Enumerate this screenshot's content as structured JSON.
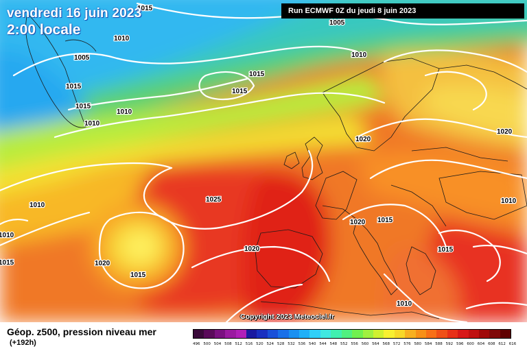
{
  "title": {
    "date": "vendredi 16 juin 2023",
    "time": "2:00 locale"
  },
  "run": "Run ECMWF 0Z du jeudi 8 juin 2023",
  "copyright": "Copyright 2023 Meteociel.fr",
  "product": {
    "name": "Géop. z500, pression niveau mer",
    "lead": "(+192h)"
  },
  "isobar_labels": [
    "1015",
    "1005",
    "1010",
    "1005",
    "1015",
    "1015",
    "1010",
    "1010",
    "1015",
    "1015",
    "1010",
    "1020",
    "1010",
    "1025",
    "1020",
    "1010",
    "1015",
    "1020",
    "1015",
    "1020",
    "1015",
    "1015",
    "1010",
    "1020",
    "1010"
  ],
  "scale": {
    "values": [
      "496",
      "500",
      "504",
      "508",
      "512",
      "516",
      "520",
      "524",
      "528",
      "532",
      "536",
      "540",
      "544",
      "548",
      "552",
      "556",
      "560",
      "564",
      "568",
      "572",
      "576",
      "580",
      "584",
      "588",
      "592",
      "596",
      "600",
      "604",
      "608",
      "612",
      "616"
    ],
    "colors": [
      "#3a0a3a",
      "#5a0a5a",
      "#7a1080",
      "#9a1aa0",
      "#b020b8",
      "#1a1aa0",
      "#1a30c0",
      "#1a50d8",
      "#1a70e8",
      "#1a90f0",
      "#20b0f8",
      "#30d0f8",
      "#40e8e0",
      "#40f0b0",
      "#50f080",
      "#70f050",
      "#a0f040",
      "#d0f030",
      "#f8f030",
      "#f8d828",
      "#f8b020",
      "#f89018",
      "#f87018",
      "#f05018",
      "#e83018",
      "#d81818",
      "#c01010",
      "#a00808",
      "#800808",
      "#600000"
    ]
  }
}
